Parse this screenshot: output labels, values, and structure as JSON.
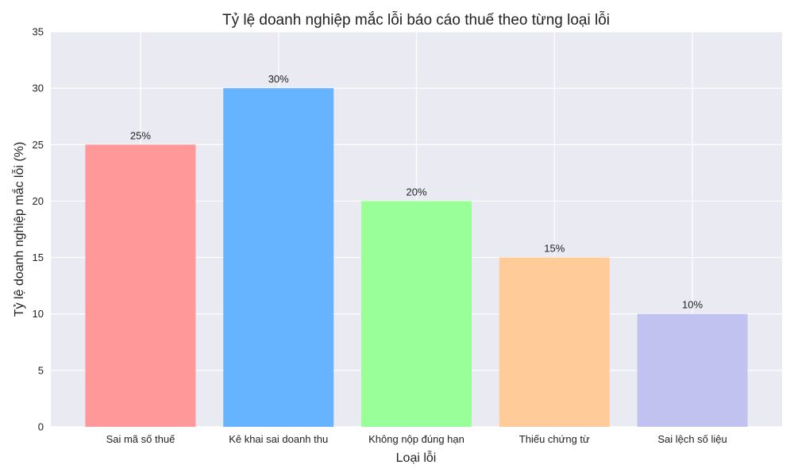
{
  "chart_data": {
    "type": "bar",
    "title": "Tỷ lệ doanh nghiệp mắc lỗi báo cáo thuế theo từng loại lỗi",
    "xlabel": "Loại lỗi",
    "ylabel": "Tỷ lệ doanh nghiệp mắc lỗi (%)",
    "categories": [
      "Sai mã số thuế",
      "Kê khai sai doanh thu",
      "Không nộp đúng hạn",
      "Thiếu chứng từ",
      "Sai lệch số liệu"
    ],
    "values": [
      25,
      30,
      20,
      15,
      10
    ],
    "data_labels": [
      "25%",
      "30%",
      "20%",
      "15%",
      "10%"
    ],
    "colors": [
      "#ff9999",
      "#66b3ff",
      "#99ff99",
      "#ffcc99",
      "#c2c2f0"
    ],
    "ylim": [
      0,
      35
    ],
    "yticks": [
      0,
      5,
      10,
      15,
      20,
      25,
      30,
      35
    ],
    "grid": true,
    "background": "#eaeaf2"
  }
}
